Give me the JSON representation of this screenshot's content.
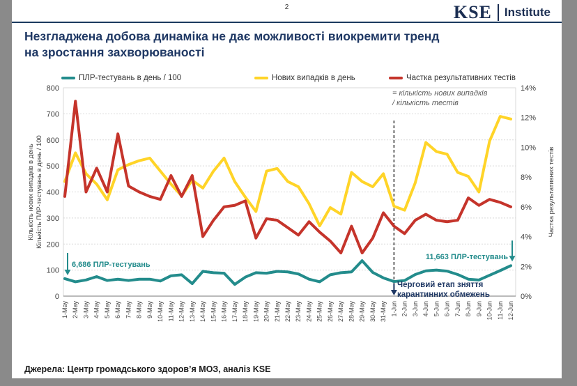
{
  "page": {
    "number": "2"
  },
  "logo": {
    "kse": "KSE",
    "institute": "Institute"
  },
  "title": {
    "line1": "Незгладжена добова динаміка не дає можливості виокремити тренд",
    "line2": "на зростання захворюваності"
  },
  "annotations": {
    "tests_start": "6,686 ПЛР-тестувань",
    "tests_end": "11,663 ПЛР-тестувань",
    "quarantine_line1": "Черговий етап зняття",
    "quarantine_line2": "карантинних обмежень",
    "legend_note_line1": "= кількість нових випадків",
    "legend_note_line2": "/ кількість тестів"
  },
  "footer": {
    "sources": "Джерела: Центр громадського здоров’я МОЗ, аналіз KSE"
  },
  "colors": {
    "navy": "#1f3864",
    "teal": "#238c8c",
    "yellow": "#ffd428",
    "red": "#c5342b",
    "grid": "#d9d9d9",
    "axis_text": "#404040",
    "vline": "#404040",
    "background_gray": "#8a8a8a"
  },
  "chart_data": {
    "type": "line",
    "categories": [
      "1-May",
      "2-May",
      "3-May",
      "4-May",
      "5-May",
      "6-May",
      "7-May",
      "8-May",
      "9-May",
      "10-May",
      "11-May",
      "12-May",
      "13-May",
      "14-May",
      "15-May",
      "16-May",
      "17-May",
      "18-May",
      "19-May",
      "20-May",
      "21-May",
      "22-May",
      "23-May",
      "24-May",
      "25-May",
      "26-May",
      "27-May",
      "28-May",
      "29-May",
      "30-May",
      "31-May",
      "1-Jun",
      "2-Jun",
      "3-Jun",
      "4-Jun",
      "5-Jun",
      "6-Jun",
      "7-Jun",
      "8-Jun",
      "9-Jun",
      "10-Jun",
      "11-Jun",
      "12-Jun"
    ],
    "series": [
      {
        "name": "ПЛР-тестувань в день / 100",
        "axis": "left",
        "color": "#238c8c",
        "values": [
          67,
          55,
          62,
          75,
          60,
          65,
          60,
          65,
          65,
          58,
          78,
          82,
          48,
          95,
          90,
          88,
          45,
          73,
          90,
          88,
          95,
          93,
          85,
          65,
          55,
          82,
          90,
          93,
          136,
          91,
          70,
          56,
          60,
          83,
          97,
          100,
          96,
          83,
          65,
          62,
          80,
          98,
          117
        ]
      },
      {
        "name": "Нових випадків в день",
        "axis": "left",
        "color": "#ffd428",
        "values": [
          440,
          550,
          470,
          430,
          370,
          485,
          505,
          520,
          530,
          480,
          430,
          385,
          445,
          415,
          480,
          530,
          440,
          380,
          325,
          480,
          490,
          440,
          420,
          355,
          270,
          340,
          315,
          475,
          440,
          420,
          470,
          345,
          330,
          435,
          590,
          555,
          545,
          475,
          460,
          400,
          595,
          690,
          680
        ]
      },
      {
        "name": "Частка результативних тестів",
        "axis": "right",
        "color": "#c5342b",
        "values": [
          6.7,
          13.1,
          7.0,
          8.6,
          7.0,
          10.9,
          7.4,
          7.0,
          6.7,
          6.5,
          8.1,
          6.7,
          8.1,
          4.0,
          5.1,
          6.0,
          6.1,
          6.4,
          3.9,
          5.2,
          5.1,
          4.6,
          4.1,
          5.0,
          4.3,
          3.7,
          2.9,
          4.7,
          2.9,
          3.9,
          5.6,
          4.7,
          4.2,
          5.1,
          5.5,
          5.1,
          5.0,
          5.1,
          6.6,
          6.1,
          6.5,
          6.3,
          6.0
        ]
      }
    ],
    "left_axis": {
      "title_line1": "Кількість нових випадків в день",
      "title_line2": "Кількість ПЛР-тестувань в день / 100",
      "min": 0,
      "max": 800,
      "step": 100
    },
    "right_axis": {
      "title": "Частка результативних тестів",
      "min": 0,
      "max": 14,
      "step": 2,
      "format": "percent"
    },
    "vline": {
      "category": "1-Jun"
    },
    "grid": true,
    "legend_position": "top"
  }
}
